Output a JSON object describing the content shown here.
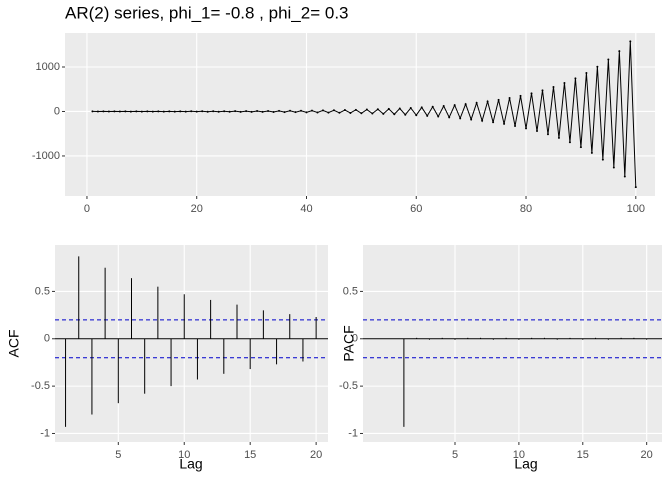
{
  "chart_data": [
    {
      "type": "line",
      "title": "AR(2) series, phi_1= -0.8 , phi_2= 0.3",
      "color": "#000000",
      "grid": true,
      "x": [
        1,
        2,
        3,
        4,
        5,
        6,
        7,
        8,
        9,
        10,
        11,
        12,
        13,
        14,
        15,
        16,
        17,
        18,
        19,
        20,
        21,
        22,
        23,
        24,
        25,
        26,
        27,
        28,
        29,
        30,
        31,
        32,
        33,
        34,
        35,
        36,
        37,
        38,
        39,
        40,
        41,
        42,
        43,
        44,
        45,
        46,
        47,
        48,
        49,
        50,
        51,
        52,
        53,
        54,
        55,
        56,
        57,
        58,
        59,
        60,
        61,
        62,
        63,
        64,
        65,
        66,
        67,
        68,
        69,
        70,
        71,
        72,
        73,
        74,
        75,
        76,
        77,
        78,
        79,
        80,
        81,
        82,
        83,
        84,
        85,
        86,
        87,
        88,
        89,
        90,
        91,
        92,
        93,
        94,
        95,
        96,
        97,
        98,
        99,
        100
      ],
      "values": [
        1,
        -1,
        1,
        -1,
        1,
        -1,
        2,
        -2,
        2,
        -2,
        2,
        -2,
        2,
        -3,
        3,
        -3,
        3,
        -4,
        4,
        -4,
        5,
        -5,
        5,
        -6,
        6,
        -7,
        7,
        -8,
        8,
        -9,
        10,
        -10,
        11,
        -12,
        13,
        -14,
        15,
        -16,
        17,
        -19,
        20,
        -22,
        24,
        -25,
        27,
        -30,
        32,
        -34,
        37,
        -40,
        43,
        -46,
        50,
        -54,
        58,
        -62,
        67,
        -73,
        78,
        -84,
        91,
        -98,
        106,
        -114,
        123,
        -132,
        143,
        -154,
        166,
        -179,
        193,
        -208,
        224,
        -241,
        260,
        -280,
        302,
        -326,
        351,
        -379,
        408,
        -440,
        475,
        -511,
        551,
        -594,
        641,
        -691,
        745,
        -802,
        865,
        -932,
        1005,
        -1083,
        1168,
        -1258,
        1357,
        -1463,
        1577,
        -1700
      ],
      "xlim": [
        -4,
        103.5
      ],
      "xticks": [
        0,
        20,
        40,
        60,
        80,
        100
      ],
      "ylim": [
        -1900,
        1764
      ],
      "yticks": [
        -1000,
        0,
        1000
      ]
    },
    {
      "type": "stem",
      "xlabel": "Lag",
      "ylabel": "ACF",
      "color": "#000000",
      "grid": true,
      "x": [
        1,
        2,
        3,
        4,
        5,
        6,
        7,
        8,
        9,
        10,
        11,
        12,
        13,
        14,
        15,
        16,
        17,
        18,
        19,
        20
      ],
      "values": [
        -0.93,
        0.87,
        -0.8,
        0.75,
        -0.68,
        0.64,
        -0.58,
        0.55,
        -0.5,
        0.47,
        -0.43,
        0.41,
        -0.37,
        0.36,
        -0.32,
        0.3,
        -0.27,
        0.26,
        -0.24,
        0.23
      ],
      "xlim": [
        0.2,
        20.9
      ],
      "xticks": [
        5,
        10,
        15,
        20
      ],
      "ylim": [
        -1.09,
        0.99
      ],
      "yticks": [
        0.5,
        0.0,
        -0.5,
        -1.0
      ],
      "hlines": [
        {
          "value": 0.2,
          "color": "#0000cc",
          "dashed": true
        },
        {
          "value": -0.2,
          "color": "#0000cc",
          "dashed": true
        },
        {
          "value": 0,
          "color": "#000000",
          "dashed": false
        }
      ]
    },
    {
      "type": "stem",
      "xlabel": "Lag",
      "ylabel": "PACF",
      "color": "#000000",
      "grid": true,
      "x": [
        1,
        2,
        3,
        4,
        5,
        6,
        7,
        8,
        9,
        10,
        11,
        12,
        13,
        14,
        15,
        16,
        17,
        18,
        19,
        20
      ],
      "values": [
        -0.93,
        0.01,
        -0.01,
        0.01,
        -0.01,
        0.01,
        0.01,
        -0.01,
        0.01,
        -0.01,
        0.01,
        0.01,
        -0.01,
        0.01,
        -0.01,
        0.01,
        -0.01,
        0.01,
        0.01,
        -0.01
      ],
      "xlim": [
        -2.2,
        21.2
      ],
      "xticks": [
        5,
        10,
        15,
        20
      ],
      "ylim": [
        -1.09,
        0.99
      ],
      "yticks": [
        0.5,
        0.0,
        -0.5,
        -1.0
      ],
      "hlines": [
        {
          "value": 0.2,
          "color": "#0000cc",
          "dashed": true
        },
        {
          "value": -0.2,
          "color": "#0000cc",
          "dashed": true
        },
        {
          "value": 0,
          "color": "#000000",
          "dashed": false
        }
      ]
    }
  ]
}
